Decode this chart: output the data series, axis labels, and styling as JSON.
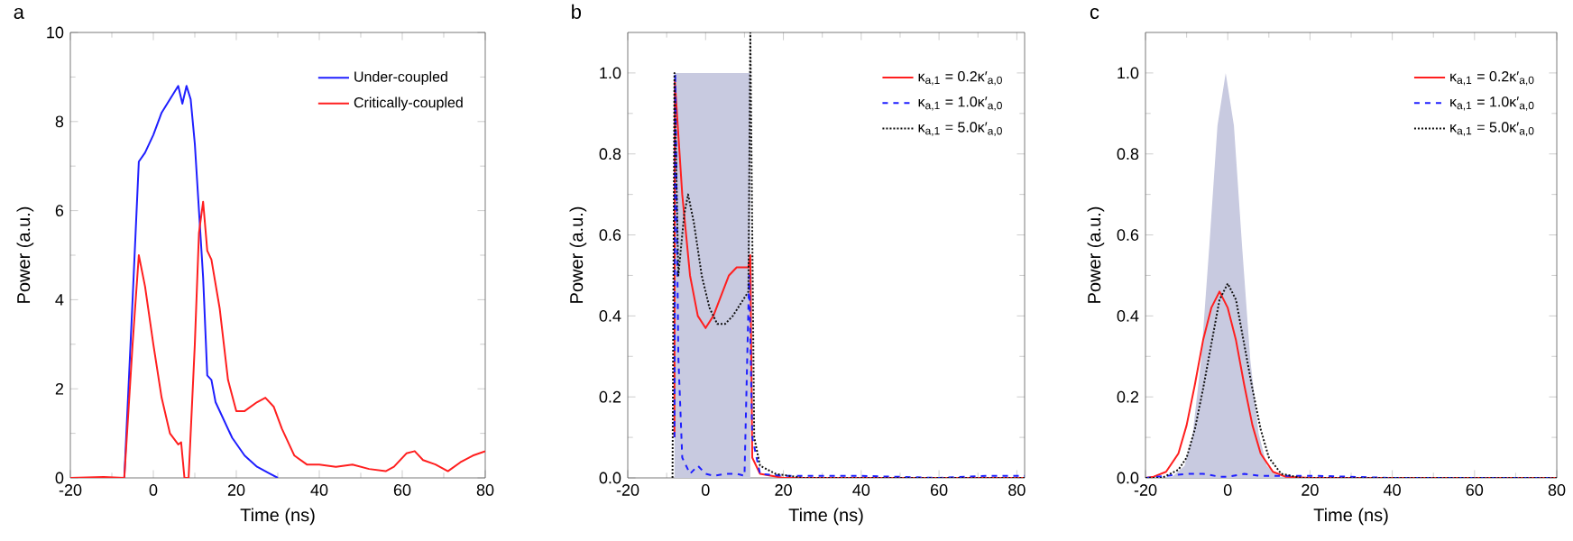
{
  "chart_data": [
    {
      "type": "line",
      "title": "a",
      "xlabel": "Time (ns)",
      "ylabel": "Power (a.u.)",
      "xlim": [
        -20,
        80
      ],
      "ylim": [
        0,
        10
      ],
      "xticks": [
        -20,
        0,
        20,
        40,
        60,
        80
      ],
      "yticks": [
        0,
        2,
        4,
        6,
        8,
        10
      ],
      "legend": "top right",
      "grid": false,
      "series": [
        {
          "name": "Under-coupled",
          "color": "#1f1fff",
          "line_style": "solid",
          "x": [
            -20,
            -7,
            -5,
            -3.5,
            -2,
            0,
            2,
            4,
            6,
            7,
            8,
            9,
            10,
            11,
            12,
            13,
            14,
            15,
            17,
            19,
            22,
            25,
            28,
            30
          ],
          "values": [
            0,
            0,
            4,
            7.1,
            7.3,
            7.7,
            8.2,
            8.5,
            8.8,
            8.4,
            8.8,
            8.5,
            7.5,
            6,
            4.5,
            2.3,
            2.2,
            1.7,
            1.3,
            0.9,
            0.5,
            0.25,
            0.1,
            0
          ]
        },
        {
          "name": "Critically-coupled",
          "color": "#ff1f1f",
          "line_style": "solid",
          "x": [
            -20,
            -12,
            -7,
            -5,
            -3.5,
            -2,
            0,
            2,
            4,
            6,
            6.7,
            7.5,
            8.5,
            10,
            11,
            12,
            13,
            14,
            16,
            18,
            20,
            22,
            25,
            27,
            29,
            31,
            34,
            37,
            40,
            44,
            48,
            52,
            56,
            58,
            61,
            63,
            65,
            68,
            71,
            74,
            77,
            80
          ],
          "values": [
            0,
            0.02,
            0,
            3,
            5,
            4.3,
            3,
            1.8,
            1,
            0.75,
            0.8,
            0,
            0,
            3,
            5.5,
            6.2,
            5.1,
            4.9,
            3.8,
            2.2,
            1.5,
            1.5,
            1.7,
            1.8,
            1.6,
            1.1,
            0.5,
            0.3,
            0.3,
            0.25,
            0.3,
            0.2,
            0.15,
            0.25,
            0.55,
            0.6,
            0.4,
            0.3,
            0.15,
            0.35,
            0.5,
            0.6
          ]
        }
      ]
    },
    {
      "type": "line",
      "title": "b",
      "xlabel": "Time (ns)",
      "ylabel": "Power (a.u.)",
      "xlim": [
        -20,
        82
      ],
      "ylim": [
        0,
        1.1
      ],
      "xticks": [
        -20,
        0,
        20,
        40,
        60,
        80
      ],
      "yticks": [
        {
          "value": 0,
          "label": "0.0"
        },
        {
          "value": 0.2,
          "label": "0.2"
        },
        {
          "value": 0.4,
          "label": "0.4"
        },
        {
          "value": 0.6,
          "label": "0.6"
        },
        {
          "value": 0.8,
          "label": "0.8"
        },
        {
          "value": 1,
          "label": "1.0"
        }
      ],
      "legend": "top right",
      "grid": false,
      "series": [
        {
          "type": "area",
          "color": "#c8cae0",
          "x": [
            -8,
            -8,
            11.5,
            11.5
          ],
          "values": [
            0,
            1,
            1,
            0
          ]
        },
        {
          "name": "κ$_{a,1}$ = 0.2κ′$_{a,0}$",
          "color": "#ff1f1f",
          "line_style": "solid",
          "x": [
            -8,
            -7.9,
            -6,
            -4,
            -2,
            0,
            2,
            4,
            6,
            8,
            10,
            11,
            11.5,
            12,
            14,
            20,
            82
          ],
          "values": [
            0.1,
            0.98,
            0.7,
            0.5,
            0.4,
            0.37,
            0.4,
            0.45,
            0.5,
            0.52,
            0.52,
            0.52,
            0.55,
            0.05,
            0.01,
            0,
            0
          ]
        },
        {
          "name": "κ$_{a,1}$ = 1.0κ′$_{a,0}$",
          "color": "#1f1fff",
          "line_style": "dashed",
          "x": [
            -8,
            -7.8,
            -7,
            -6,
            -4,
            -2,
            0,
            2,
            5,
            8,
            10,
            11.2,
            12,
            14,
            20,
            40,
            60,
            72,
            82
          ],
          "values": [
            0.1,
            1.0,
            0.3,
            0.05,
            0.01,
            0.03,
            0.01,
            0.005,
            0.01,
            0.01,
            0.005,
            0.5,
            0.1,
            0.01,
            0.005,
            0.005,
            0,
            0.005,
            0.005
          ]
        },
        {
          "name": "κ$_{a,1}$ = 5.0κ′$_{a,0}$",
          "color": "#111111",
          "line_style": "dotted",
          "x": [
            -8.5,
            -8,
            -7,
            -5.5,
            -4.5,
            -3,
            -1,
            1,
            3,
            5,
            7,
            9,
            11,
            11.5,
            12.5,
            14,
            18,
            25,
            82
          ],
          "values": [
            0,
            1.0,
            0.5,
            0.65,
            0.7,
            0.63,
            0.5,
            0.42,
            0.38,
            0.38,
            0.4,
            0.43,
            0.46,
            1.1,
            0.1,
            0.03,
            0.01,
            0,
            0
          ]
        }
      ]
    },
    {
      "type": "line",
      "title": "c",
      "xlabel": "Time (ns)",
      "ylabel": "Power (a.u.)",
      "xlim": [
        -20,
        80
      ],
      "ylim": [
        0,
        1.1
      ],
      "xticks": [
        -20,
        0,
        20,
        40,
        60,
        80
      ],
      "yticks": [
        {
          "value": 0,
          "label": "0.0"
        },
        {
          "value": 0.2,
          "label": "0.2"
        },
        {
          "value": 0.4,
          "label": "0.4"
        },
        {
          "value": 0.6,
          "label": "0.6"
        },
        {
          "value": 0.8,
          "label": "0.8"
        },
        {
          "value": 1,
          "label": "1.0"
        }
      ],
      "legend": "top right",
      "grid": false,
      "series": [
        {
          "type": "area",
          "color": "#c8cae0",
          "x": [
            -20,
            -13.5,
            -10.5,
            -8.5,
            -6.5,
            -4.5,
            -2.5,
            -0.5,
            1.5,
            3.5,
            5.5,
            7.5,
            9.5,
            12.5,
            80
          ],
          "values": [
            0,
            0.003,
            0.03,
            0.11,
            0.29,
            0.57,
            0.87,
            1.0,
            0.87,
            0.57,
            0.29,
            0.11,
            0.03,
            0.003,
            0
          ]
        },
        {
          "name": "κ$_{a,1}$ = 0.2κ′$_{a,0}$",
          "color": "#ff1f1f",
          "line_style": "solid",
          "x": [
            -20,
            -18,
            -15,
            -12,
            -10,
            -8,
            -6,
            -4,
            -2,
            0,
            2,
            4,
            6,
            8,
            11,
            14,
            20,
            80
          ],
          "values": [
            0,
            0.003,
            0.015,
            0.06,
            0.13,
            0.23,
            0.34,
            0.42,
            0.46,
            0.42,
            0.34,
            0.23,
            0.13,
            0.06,
            0.015,
            0.003,
            0,
            0
          ]
        },
        {
          "name": "κ$_{a,1}$ = 1.0κ′$_{a,0}$",
          "color": "#1f1fff",
          "line_style": "dashed",
          "x": [
            -20,
            -10,
            -6,
            -2,
            0,
            4,
            8,
            22,
            40,
            80
          ],
          "values": [
            0,
            0.01,
            0.01,
            0.003,
            0.003,
            0.01,
            0.005,
            0.005,
            0,
            0
          ]
        },
        {
          "name": "κ$_{a,1}$ = 5.0κ′$_{a,0}$",
          "color": "#111111",
          "line_style": "dotted",
          "x": [
            -20,
            -16,
            -12,
            -10,
            -8,
            -6,
            -4,
            -2,
            0,
            2,
            4,
            6,
            8,
            10,
            13,
            18,
            80
          ],
          "values": [
            0,
            0,
            0.02,
            0.05,
            0.12,
            0.22,
            0.33,
            0.44,
            0.48,
            0.44,
            0.33,
            0.22,
            0.12,
            0.05,
            0.01,
            0,
            0
          ]
        }
      ]
    }
  ]
}
